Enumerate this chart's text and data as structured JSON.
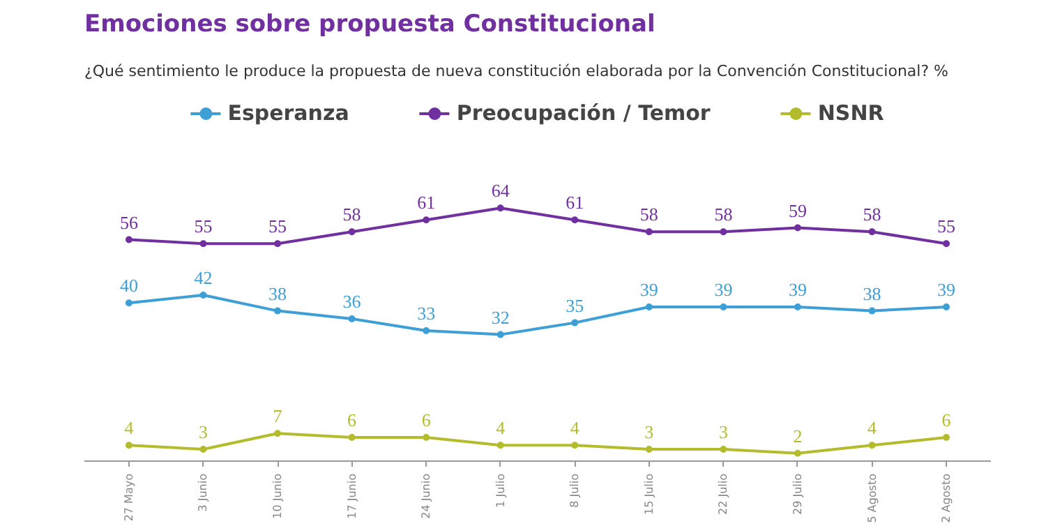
{
  "chart_data": {
    "type": "line",
    "title": "Emociones sobre propuesta Constitucional",
    "subtitle": "¿Qué sentimiento le produce la propuesta de nueva constitución elaborada por la Convención Constitucional? %",
    "categories": [
      "27 Mayo",
      "3 Junio",
      "10 Junio",
      "17 Junio",
      "24 Junio",
      "1 Julio",
      "8 Julio",
      "15 Julio",
      "22 Julio",
      "29 Julio",
      "5 Agosto",
      "2 Agosto"
    ],
    "series": [
      {
        "name": "Esperanza",
        "color": "#3d9fd6",
        "values": [
          40,
          42,
          38,
          36,
          33,
          32,
          35,
          39,
          39,
          39,
          38,
          39
        ]
      },
      {
        "name": "Preocupación / Temor",
        "color": "#7030a0",
        "values": [
          56,
          55,
          55,
          58,
          61,
          64,
          61,
          58,
          58,
          59,
          58,
          55
        ]
      },
      {
        "name": "NSNR",
        "color": "#b3bc2c",
        "values": [
          4,
          3,
          7,
          6,
          6,
          4,
          4,
          3,
          3,
          2,
          4,
          6
        ]
      }
    ],
    "data_labels": true,
    "legend": "top",
    "grid": false,
    "marker": "circle",
    "line_style": "solid"
  }
}
